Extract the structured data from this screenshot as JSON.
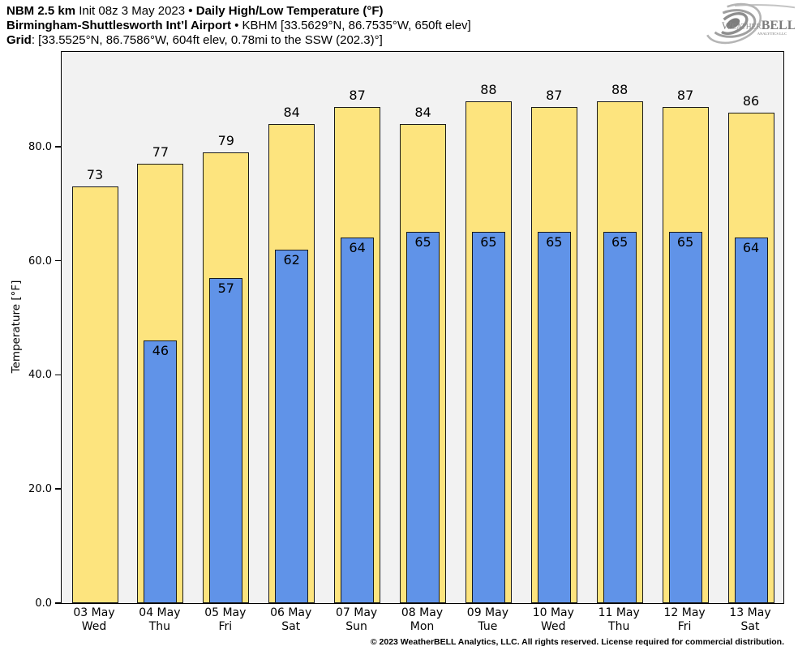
{
  "header": {
    "line1": {
      "bold1": "NBM 2.5 km",
      "regular": "Init 08z 3 May 2023",
      "bullet": "•",
      "bold2": "Daily High/Low Temperature (°F)"
    },
    "line2": {
      "bold": "Birmingham-Shuttlesworth Int’l Airport",
      "bullet": "•",
      "regular": "KBHM [33.5629°N, 86.7535°W, 650ft elev]"
    },
    "line3": {
      "bold": "Grid",
      "regular": ": [33.5525°N, 86.7586°W, 604ft elev, 0.78mi to the SSW (202.3)°]"
    }
  },
  "logo": {
    "brand_first": "Weather",
    "brand_second": "BELL",
    "sub": "Analytics LLC"
  },
  "chart_data": {
    "type": "bar",
    "title": "Daily High/Low Temperature (°F)",
    "categories": [
      {
        "date": "03 May",
        "day": "Wed"
      },
      {
        "date": "04 May",
        "day": "Thu"
      },
      {
        "date": "05 May",
        "day": "Fri"
      },
      {
        "date": "06 May",
        "day": "Sat"
      },
      {
        "date": "07 May",
        "day": "Sun"
      },
      {
        "date": "08 May",
        "day": "Mon"
      },
      {
        "date": "09 May",
        "day": "Tue"
      },
      {
        "date": "10 May",
        "day": "Wed"
      },
      {
        "date": "11 May",
        "day": "Thu"
      },
      {
        "date": "12 May",
        "day": "Fri"
      },
      {
        "date": "13 May",
        "day": "Sat"
      }
    ],
    "series": [
      {
        "name": "High",
        "color": "#fde47e",
        "values": [
          73,
          77,
          79,
          84,
          87,
          84,
          88,
          87,
          88,
          87,
          86
        ]
      },
      {
        "name": "Low",
        "color": "#6093e8",
        "values": [
          null,
          46,
          57,
          62,
          64,
          65,
          65,
          65,
          65,
          65,
          64
        ]
      }
    ],
    "xlabel": "",
    "ylabel": "Temperature [°F]",
    "yticks": [
      0,
      20,
      40,
      60,
      80
    ],
    "ytick_labels": [
      "0.0",
      "20.0",
      "40.0",
      "60.0",
      "80.0"
    ],
    "ylim": [
      0,
      96.6
    ],
    "grid": false,
    "legend": "none",
    "plot_bg": "#f2f2f2",
    "edge_color": "#1a1a1a"
  },
  "footer": {
    "copyright": "© 2023 WeatherBELL Analytics, LLC. All rights reserved. License required for commercial distribution."
  }
}
